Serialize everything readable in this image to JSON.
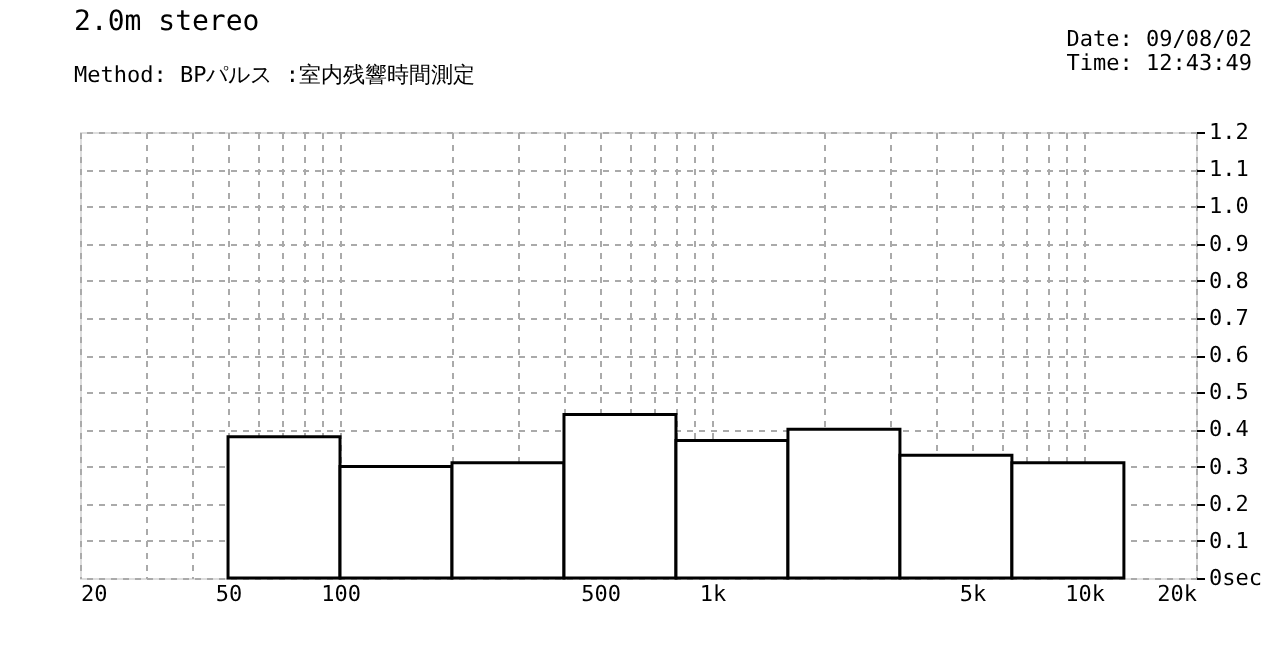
{
  "chart_data": {
    "type": "histogram",
    "title": "2.0m stereo",
    "subtitle": "Method:  BPパルス        :室内残響時間測定",
    "annotations": [
      "Date: 09/08/02",
      "Time: 12:43:49"
    ],
    "bins": [
      50,
      100,
      200,
      400,
      800,
      1600,
      3200,
      6400,
      12800
    ],
    "values": [
      0.38,
      0.3,
      0.31,
      0.44,
      0.37,
      0.4,
      0.33,
      0.31
    ],
    "color": "#ffffff",
    "log": "x",
    "xlim": [
      20,
      20000
    ],
    "xticks": [
      20,
      {
        "value": 30,
        "label": null
      },
      {
        "value": 40,
        "label": null
      },
      50,
      {
        "value": 60,
        "label": null
      },
      {
        "value": 70,
        "label": null
      },
      {
        "value": 80,
        "label": null
      },
      {
        "value": 90,
        "label": null
      },
      100,
      {
        "value": 200,
        "label": null
      },
      {
        "value": 300,
        "label": null
      },
      {
        "value": 400,
        "label": null
      },
      500,
      {
        "value": 600,
        "label": null
      },
      {
        "value": 700,
        "label": null
      },
      {
        "value": 800,
        "label": null
      },
      {
        "value": 900,
        "label": null
      },
      {
        "value": 1000,
        "label": "1k"
      },
      {
        "value": 2000,
        "label": null
      },
      {
        "value": 3000,
        "label": null
      },
      {
        "value": 4000,
        "label": null
      },
      {
        "value": 5000,
        "label": "5k"
      },
      {
        "value": 6000,
        "label": null
      },
      {
        "value": 7000,
        "label": null
      },
      {
        "value": 8000,
        "label": null
      },
      {
        "value": 9000,
        "label": null
      },
      {
        "value": 10000,
        "label": "10k"
      },
      {
        "value": 20000,
        "label": "20k"
      }
    ],
    "ylim": [
      0,
      1.2
    ],
    "yticks": [
      {
        "value": 0,
        "label": "0sec"
      },
      0.1,
      0.2,
      0.3,
      0.4,
      0.5,
      0.6,
      0.7,
      0.8,
      0.9,
      {
        "value": 1.0,
        "label": "1.0"
      },
      1.1,
      1.2
    ],
    "grid": true
  }
}
